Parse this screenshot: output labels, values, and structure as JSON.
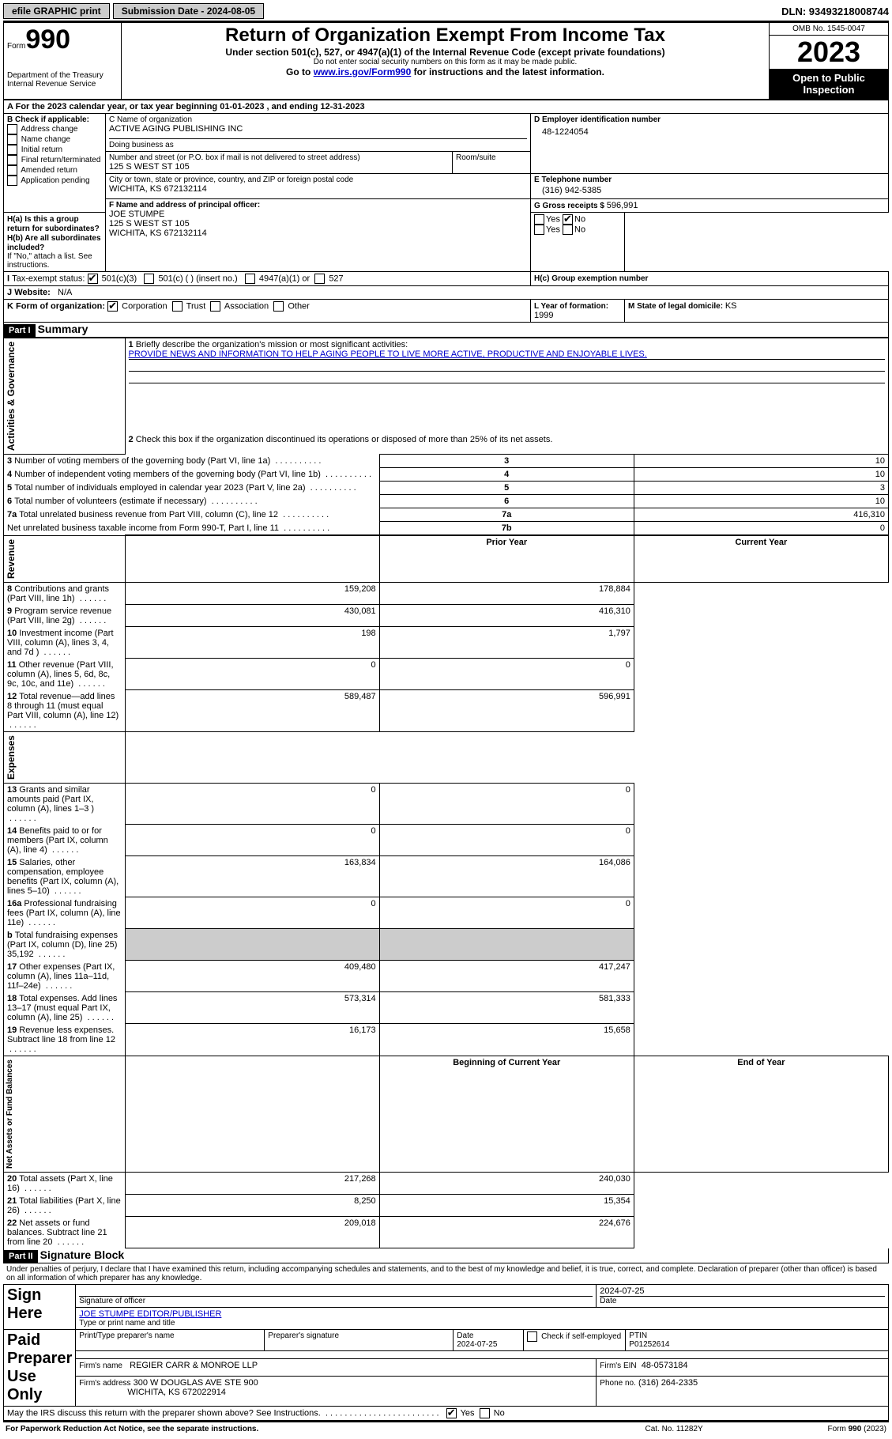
{
  "topbar": {
    "efile": "efile GRAPHIC print",
    "submission_label": "Submission Date - 2024-08-05",
    "dln": "DLN: 93493218008744"
  },
  "header": {
    "form_prefix": "Form",
    "form_number": "990",
    "title": "Return of Organization Exempt From Income Tax",
    "subtitle1": "Under section 501(c), 527, or 4947(a)(1) of the Internal Revenue Code (except private foundations)",
    "subtitle2": "Do not enter social security numbers on this form as it may be made public.",
    "subtitle3_pre": "Go to ",
    "subtitle3_link": "www.irs.gov/Form990",
    "subtitle3_post": " for instructions and the latest information.",
    "dept": "Department of the Treasury\nInternal Revenue Service",
    "omb": "OMB No. 1545-0047",
    "year": "2023",
    "inspection": "Open to Public Inspection"
  },
  "sectionA": {
    "a_text": "For the 2023 calendar year, or tax year beginning 01-01-2023   , and ending 12-31-2023",
    "b_label": "B Check if applicable:",
    "b_items": [
      "Address change",
      "Name change",
      "Initial return",
      "Final return/terminated",
      "Amended return",
      "Application pending"
    ],
    "c_label": "C Name of organization",
    "c_name": "ACTIVE AGING PUBLISHING INC",
    "dba_label": "Doing business as",
    "street_label": "Number and street (or P.O. box if mail is not delivered to street address)",
    "street": "125 S WEST ST 105",
    "room_label": "Room/suite",
    "city_label": "City or town, state or province, country, and ZIP or foreign postal code",
    "city": "WICHITA, KS  672132114",
    "d_label": "D Employer identification number",
    "d_ein": "48-1224054",
    "e_label": "E Telephone number",
    "e_phone": "(316) 942-5385",
    "g_label": "G Gross receipts $ ",
    "g_amount": "596,991",
    "f_label": "F  Name and address of principal officer:",
    "f_name": "JOE STUMPE",
    "f_addr1": "125 S WEST ST 105",
    "f_addr2": "WICHITA, KS  672132114",
    "ha_label": "H(a)  Is this a group return for subordinates?",
    "hb_label": "H(b)  Are all subordinates included?",
    "hb_note": "If \"No,\" attach a list. See instructions.",
    "hc_label": "H(c)  Group exemption number",
    "yes": "Yes",
    "no": "No",
    "i_label": "Tax-exempt status:",
    "i_501c3": "501(c)(3)",
    "i_501c": "501(c) (  ) (insert no.)",
    "i_4947": "4947(a)(1) or",
    "i_527": "527",
    "j_label": "Website:",
    "j_site": "N/A",
    "k_label": "K Form of organization:",
    "k_corp": "Corporation",
    "k_trust": "Trust",
    "k_assoc": "Association",
    "k_other": "Other",
    "l_label": "L Year of formation: ",
    "l_year": "1999",
    "m_label": "M State of legal domicile: ",
    "m_state": "KS"
  },
  "part1": {
    "header": "Part I",
    "title": "Summary",
    "q1_label": "Briefly describe the organization's mission or most significant activities:",
    "q1_text": "PROVIDE NEWS AND INFORMATION TO HELP AGING PEOPLE TO LIVE MORE ACTIVE, PRODUCTIVE AND ENJOYABLE LIVES.",
    "q2_label": "Check this box        if the organization discontinued its operations or disposed of more than 25% of its net assets.",
    "sidebar_gov": "Activities & Governance",
    "sidebar_rev": "Revenue",
    "sidebar_exp": "Expenses",
    "sidebar_net": "Net Assets or Fund Balances",
    "col_prior": "Prior Year",
    "col_current": "Current Year",
    "col_begin": "Beginning of Current Year",
    "col_end": "End of Year",
    "gov_rows": [
      {
        "n": "3",
        "label": "Number of voting members of the governing body (Part VI, line 1a)",
        "box": "3",
        "val": "10"
      },
      {
        "n": "4",
        "label": "Number of independent voting members of the governing body (Part VI, line 1b)",
        "box": "4",
        "val": "10"
      },
      {
        "n": "5",
        "label": "Total number of individuals employed in calendar year 2023 (Part V, line 2a)",
        "box": "5",
        "val": "3"
      },
      {
        "n": "6",
        "label": "Total number of volunteers (estimate if necessary)",
        "box": "6",
        "val": "10"
      },
      {
        "n": "7a",
        "label": "Total unrelated business revenue from Part VIII, column (C), line 12",
        "box": "7a",
        "val": "416,310"
      },
      {
        "n": "",
        "label": "Net unrelated business taxable income from Form 990-T, Part I, line 11",
        "box": "7b",
        "val": "0"
      }
    ],
    "rev_rows": [
      {
        "n": "8",
        "label": "Contributions and grants (Part VIII, line 1h)",
        "prior": "159,208",
        "curr": "178,884"
      },
      {
        "n": "9",
        "label": "Program service revenue (Part VIII, line 2g)",
        "prior": "430,081",
        "curr": "416,310"
      },
      {
        "n": "10",
        "label": "Investment income (Part VIII, column (A), lines 3, 4, and 7d )",
        "prior": "198",
        "curr": "1,797"
      },
      {
        "n": "11",
        "label": "Other revenue (Part VIII, column (A), lines 5, 6d, 8c, 9c, 10c, and 11e)",
        "prior": "0",
        "curr": "0"
      },
      {
        "n": "12",
        "label": "Total revenue—add lines 8 through 11 (must equal Part VIII, column (A), line 12)",
        "prior": "589,487",
        "curr": "596,991"
      }
    ],
    "exp_rows": [
      {
        "n": "13",
        "label": "Grants and similar amounts paid (Part IX, column (A), lines 1–3 )",
        "prior": "0",
        "curr": "0"
      },
      {
        "n": "14",
        "label": "Benefits paid to or for members (Part IX, column (A), line 4)",
        "prior": "0",
        "curr": "0"
      },
      {
        "n": "15",
        "label": "Salaries, other compensation, employee benefits (Part IX, column (A), lines 5–10)",
        "prior": "163,834",
        "curr": "164,086"
      },
      {
        "n": "16a",
        "label": "Professional fundraising fees (Part IX, column (A), line 11e)",
        "prior": "0",
        "curr": "0"
      },
      {
        "n": "b",
        "label": "Total fundraising expenses (Part IX, column (D), line 25) 35,192",
        "prior": "",
        "curr": "",
        "grey": true
      },
      {
        "n": "17",
        "label": "Other expenses (Part IX, column (A), lines 11a–11d, 11f–24e)",
        "prior": "409,480",
        "curr": "417,247"
      },
      {
        "n": "18",
        "label": "Total expenses. Add lines 13–17 (must equal Part IX, column (A), line 25)",
        "prior": "573,314",
        "curr": "581,333"
      },
      {
        "n": "19",
        "label": "Revenue less expenses. Subtract line 18 from line 12",
        "prior": "16,173",
        "curr": "15,658"
      }
    ],
    "net_rows": [
      {
        "n": "20",
        "label": "Total assets (Part X, line 16)",
        "prior": "217,268",
        "curr": "240,030"
      },
      {
        "n": "21",
        "label": "Total liabilities (Part X, line 26)",
        "prior": "8,250",
        "curr": "15,354"
      },
      {
        "n": "22",
        "label": "Net assets or fund balances. Subtract line 21 from line 20",
        "prior": "209,018",
        "curr": "224,676"
      }
    ]
  },
  "part2": {
    "header": "Part II",
    "title": "Signature Block",
    "declaration": "Under penalties of perjury, I declare that I have examined this return, including accompanying schedules and statements, and to the best of my knowledge and belief, it is true, correct, and complete. Declaration of preparer (other than officer) is based on all information of which preparer has any knowledge.",
    "sign_here": "Sign Here",
    "sig_officer_label": "Signature of officer",
    "sig_date": "2024-07-25",
    "officer_name": "JOE STUMPE  EDITOR/PUBLISHER",
    "type_label": "Type or print name and title",
    "paid_prep": "Paid Preparer Use Only",
    "prep_name_label": "Print/Type preparer's name",
    "prep_sig_label": "Preparer's signature",
    "prep_date_label": "Date",
    "prep_date": "2024-07-25",
    "self_emp_label": "Check        if self-employed",
    "ptin_label": "PTIN",
    "ptin": "P01252614",
    "firm_name_label": "Firm's name",
    "firm_name": "REGIER CARR & MONROE LLP",
    "firm_ein_label": "Firm's EIN",
    "firm_ein": "48-0573184",
    "firm_addr_label": "Firm's address",
    "firm_addr1": "300 W DOUGLAS AVE STE 900",
    "firm_addr2": "WICHITA, KS  672022914",
    "firm_phone_label": "Phone no.",
    "firm_phone": "(316) 264-2335",
    "discuss": "May the IRS discuss this return with the preparer shown above? See Instructions.",
    "paperwork": "For Paperwork Reduction Act Notice, see the separate instructions.",
    "cat": "Cat. No. 11282Y",
    "form_footer": "Form 990 (2023)"
  }
}
